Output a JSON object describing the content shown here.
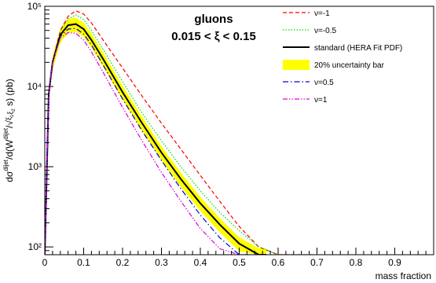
{
  "chart_data": {
    "type": "line",
    "title": "gluons",
    "subtitle": "0.015 < ξ < 0.15",
    "xlabel": "mass fraction",
    "ylabel": "dσ^dijet/d(W^dijet/√(ξ1ξ2 s)) (pb)",
    "y_scale": "log",
    "xlim": [
      0,
      1
    ],
    "ylim": [
      80,
      100000
    ],
    "x_ticks": [
      "0",
      "0.1",
      "0.2",
      "0.3",
      "0.4",
      "0.5",
      "0.6",
      "0.7",
      "0.8",
      "0.9"
    ],
    "y_ticks": [
      {
        "value": 100,
        "label": "10²"
      },
      {
        "value": 1000,
        "label": "10³"
      },
      {
        "value": 10000,
        "label": "10⁴"
      },
      {
        "value": 100000,
        "label": "10⁵"
      }
    ],
    "grid": false,
    "legend_position": "top-right",
    "series": [
      {
        "name": "ν=-1",
        "color": "#ff0000",
        "style": "dash",
        "x": [
          0.0,
          0.01,
          0.02,
          0.04,
          0.06,
          0.08,
          0.1,
          0.12,
          0.15,
          0.2,
          0.25,
          0.3,
          0.35,
          0.4,
          0.45,
          0.5,
          0.55,
          0.6,
          0.65,
          0.69
        ],
        "y": [
          80,
          8000,
          20000,
          50000,
          75000,
          88000,
          80000,
          62000,
          38000,
          17000,
          7600,
          3500,
          1650,
          780,
          370,
          180,
          100,
          80,
          80,
          80
        ]
      },
      {
        "name": "ν=-0.5",
        "color": "#00dd00",
        "style": "dot",
        "x": [
          0.0,
          0.01,
          0.02,
          0.04,
          0.06,
          0.08,
          0.1,
          0.12,
          0.15,
          0.2,
          0.25,
          0.3,
          0.35,
          0.4,
          0.45,
          0.5,
          0.55,
          0.6,
          0.62
        ],
        "y": [
          80,
          8000,
          20000,
          48000,
          70000,
          78000,
          68000,
          50000,
          29000,
          11500,
          4700,
          2100,
          1000,
          500,
          270,
          160,
          100,
          80,
          80
        ]
      },
      {
        "name": "standard (HERA Fit PDF)",
        "color": "#000000",
        "style": "solid",
        "x": [
          0.0,
          0.01,
          0.02,
          0.04,
          0.06,
          0.08,
          0.1,
          0.12,
          0.15,
          0.2,
          0.25,
          0.3,
          0.35,
          0.4,
          0.45,
          0.5,
          0.55,
          0.57
        ],
        "y": [
          80,
          8000,
          20000,
          44000,
          58000,
          60000,
          52000,
          38000,
          22000,
          8500,
          3500,
          1500,
          700,
          350,
          190,
          110,
          80,
          80
        ]
      },
      {
        "name": "ν=0.5",
        "color": "#0000dd",
        "style": "dashdot",
        "x": [
          0.0,
          0.01,
          0.02,
          0.04,
          0.06,
          0.08,
          0.1,
          0.12,
          0.15,
          0.2,
          0.25,
          0.3,
          0.35,
          0.4,
          0.45,
          0.5,
          0.53
        ],
        "y": [
          80,
          8000,
          20000,
          42000,
          52000,
          53000,
          45000,
          33000,
          18500,
          7000,
          2800,
          1200,
          530,
          250,
          130,
          80,
          80
        ]
      },
      {
        "name": "ν=1",
        "color": "#dd00dd",
        "style": "dashdotdot",
        "x": [
          0.0,
          0.01,
          0.02,
          0.04,
          0.06,
          0.08,
          0.1,
          0.12,
          0.15,
          0.2,
          0.25,
          0.3,
          0.35,
          0.4,
          0.45,
          0.5,
          0.52
        ],
        "y": [
          80,
          8000,
          20000,
          40000,
          47000,
          46000,
          38000,
          27000,
          15000,
          5500,
          2100,
          850,
          370,
          170,
          95,
          80,
          80
        ]
      }
    ],
    "band": {
      "name": "20% uncertainty bar",
      "color": "#ffff00",
      "relative_width": 0.2,
      "of_series": "standard (HERA Fit PDF)"
    }
  }
}
